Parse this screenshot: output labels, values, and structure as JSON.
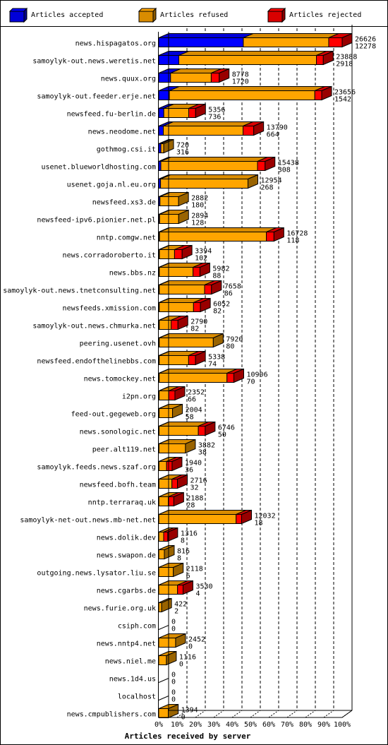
{
  "chart_data": {
    "type": "bar",
    "orientation": "horizontal",
    "stacked": true,
    "style": "3d",
    "xlabel": "Articles received by server",
    "xticks": [
      "0%",
      "10%",
      "20%",
      "30%",
      "40%",
      "50%",
      "60%",
      "70%",
      "80%",
      "90%",
      "100%"
    ],
    "xlim": [
      0,
      100
    ],
    "grid": "vertical dashed",
    "legend": [
      {
        "name": "Articles accepted",
        "color": "#0000ff"
      },
      {
        "name": "Articles refused",
        "color": "#ffa500"
      },
      {
        "name": "Articles rejected",
        "color": "#ff0000"
      }
    ],
    "rows": [
      {
        "server": "news.hispagatos.org",
        "total": 26626,
        "accepted": 12278,
        "seg": [
          12278,
          12400,
          1948
        ]
      },
      {
        "server": "samoylyk-out.news.weretis.net",
        "total": 23888,
        "accepted": 2918,
        "seg": [
          2918,
          19970,
          1000
        ]
      },
      {
        "server": "news.quux.org",
        "total": 8778,
        "accepted": 1720,
        "seg": [
          1720,
          5900,
          1158
        ]
      },
      {
        "server": "samoylyk-out.feeder.erje.net",
        "total": 23656,
        "accepted": 1542,
        "seg": [
          1542,
          21114,
          1000
        ]
      },
      {
        "server": "newsfeed.fu-berlin.de",
        "total": 5356,
        "accepted": 736,
        "seg": [
          736,
          3620,
          1000
        ]
      },
      {
        "server": "news.neodome.net",
        "total": 13790,
        "accepted": 664,
        "seg": [
          664,
          11576,
          1550
        ]
      },
      {
        "server": "gothmog.csi.it",
        "total": 720,
        "accepted": 316,
        "seg": [
          316,
          404,
          0
        ]
      },
      {
        "server": "usenet.blueworldhosting.com",
        "total": 15438,
        "accepted": 308,
        "seg": [
          308,
          14030,
          1100
        ]
      },
      {
        "server": "usenet.goja.nl.eu.org",
        "total": 12954,
        "accepted": 268,
        "seg": [
          268,
          12686,
          0
        ]
      },
      {
        "server": "newsfeed.xs3.de",
        "total": 2882,
        "accepted": 180,
        "seg": [
          180,
          2702,
          0
        ]
      },
      {
        "server": "newsfeed-ipv6.pionier.net.pl",
        "total": 2894,
        "accepted": 128,
        "seg": [
          128,
          2766,
          0
        ]
      },
      {
        "server": "nntp.comgw.net",
        "total": 16728,
        "accepted": 118,
        "seg": [
          118,
          15510,
          1100
        ]
      },
      {
        "server": "news.corradoroberto.it",
        "total": 3394,
        "accepted": 102,
        "seg": [
          102,
          2192,
          1100
        ]
      },
      {
        "server": "news.bbs.nz",
        "total": 5982,
        "accepted": 88,
        "seg": [
          88,
          4894,
          1000
        ]
      },
      {
        "server": "samoylyk-out.news.tnetconsulting.net",
        "total": 7658,
        "accepted": 86,
        "seg": [
          86,
          6572,
          1000
        ]
      },
      {
        "server": "newsfeeds.xmission.com",
        "total": 6052,
        "accepted": 82,
        "seg": [
          82,
          4970,
          1000
        ]
      },
      {
        "server": "samoylyk-out.news.chmurka.net",
        "total": 2790,
        "accepted": 82,
        "seg": [
          82,
          1708,
          1000
        ]
      },
      {
        "server": "peering.usenet.ovh",
        "total": 7920,
        "accepted": 80,
        "seg": [
          80,
          7840,
          0
        ]
      },
      {
        "server": "newsfeed.endofthelinebbs.com",
        "total": 5338,
        "accepted": 74,
        "seg": [
          74,
          4264,
          1000
        ]
      },
      {
        "server": "news.tomockey.net",
        "total": 10906,
        "accepted": 70,
        "seg": [
          70,
          9836,
          1000
        ]
      },
      {
        "server": "i2pn.org",
        "total": 2352,
        "accepted": 66,
        "seg": [
          66,
          1386,
          900
        ]
      },
      {
        "server": "feed-out.gegeweb.org",
        "total": 2004,
        "accepted": 58,
        "seg": [
          58,
          1946,
          0
        ]
      },
      {
        "server": "news.sonologic.net",
        "total": 6746,
        "accepted": 50,
        "seg": [
          50,
          5696,
          1000
        ]
      },
      {
        "server": "peer.alt119.net",
        "total": 3882,
        "accepted": 38,
        "seg": [
          38,
          3844,
          0
        ]
      },
      {
        "server": "samoylyk.feeds.news.szaf.org",
        "total": 1940,
        "accepted": 36,
        "seg": [
          36,
          1104,
          800
        ]
      },
      {
        "server": "newsfeed.bofh.team",
        "total": 2716,
        "accepted": 32,
        "seg": [
          32,
          1884,
          800
        ]
      },
      {
        "server": "nntp.terraraq.uk",
        "total": 2188,
        "accepted": 28,
        "seg": [
          28,
          1360,
          800
        ]
      },
      {
        "server": "samoylyk-net-out.news.mb-net.net",
        "total": 12032,
        "accepted": 18,
        "seg": [
          18,
          11214,
          800
        ]
      },
      {
        "server": "news.dolik.dev",
        "total": 1316,
        "accepted": 8,
        "seg": [
          8,
          708,
          600
        ]
      },
      {
        "server": "news.swapon.de",
        "total": 816,
        "accepted": 8,
        "seg": [
          8,
          808,
          0
        ]
      },
      {
        "server": "outgoing.news.lysator.liu.se",
        "total": 2118,
        "accepted": 6,
        "seg": [
          6,
          2112,
          0
        ]
      },
      {
        "server": "news.cgarbs.de",
        "total": 3530,
        "accepted": 4,
        "seg": [
          4,
          2726,
          800
        ]
      },
      {
        "server": "news.furie.org.uk",
        "total": 422,
        "accepted": 2,
        "seg": [
          2,
          420,
          0
        ]
      },
      {
        "server": "csiph.com",
        "total": 0,
        "accepted": 0,
        "seg": [
          0,
          0,
          0
        ]
      },
      {
        "server": "news.nntp4.net",
        "total": 2452,
        "accepted": 0,
        "seg": [
          0,
          2452,
          0
        ]
      },
      {
        "server": "news.niel.me",
        "total": 1116,
        "accepted": 0,
        "seg": [
          0,
          1116,
          0
        ]
      },
      {
        "server": "news.1d4.us",
        "total": 0,
        "accepted": 0,
        "seg": [
          0,
          0,
          0
        ]
      },
      {
        "server": "localhost",
        "total": 0,
        "accepted": 0,
        "seg": [
          0,
          0,
          0
        ]
      },
      {
        "server": "news.cmpublishers.com",
        "total": 1394,
        "accepted": 0,
        "seg": [
          0,
          1394,
          0
        ]
      }
    ]
  }
}
